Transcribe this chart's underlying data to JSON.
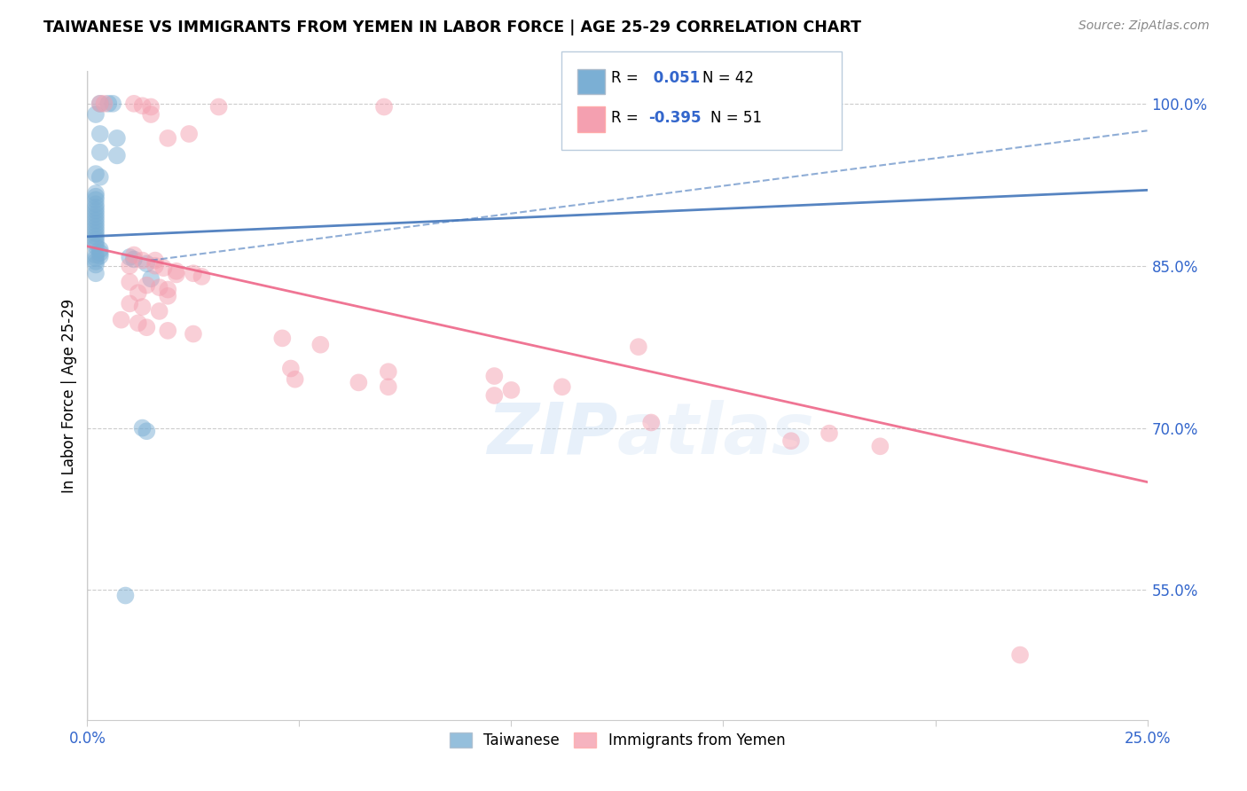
{
  "title": "TAIWANESE VS IMMIGRANTS FROM YEMEN IN LABOR FORCE | AGE 25-29 CORRELATION CHART",
  "source": "Source: ZipAtlas.com",
  "ylabel": "In Labor Force | Age 25-29",
  "xlim": [
    0.0,
    0.25
  ],
  "ylim": [
    0.43,
    1.03
  ],
  "x_ticks": [
    0.0,
    0.05,
    0.1,
    0.15,
    0.2,
    0.25
  ],
  "x_tick_labels": [
    "0.0%",
    "",
    "",
    "",
    "",
    "25.0%"
  ],
  "y_ticks_right": [
    0.55,
    0.7,
    0.85,
    1.0
  ],
  "y_tick_labels_right": [
    "55.0%",
    "70.0%",
    "85.0%",
    "100.0%"
  ],
  "taiwanese_R": 0.051,
  "taiwanese_N": 42,
  "yemeni_R": -0.395,
  "yemeni_N": 51,
  "blue_color": "#7BAFD4",
  "pink_color": "#F4A0B0",
  "blue_line_color": "#4477BB",
  "pink_line_color": "#EE6688",
  "watermark": "ZIPatlas",
  "blue_scatter": [
    [
      0.003,
      1.0
    ],
    [
      0.005,
      1.0
    ],
    [
      0.006,
      1.0
    ],
    [
      0.002,
      0.99
    ],
    [
      0.003,
      0.972
    ],
    [
      0.007,
      0.968
    ],
    [
      0.003,
      0.955
    ],
    [
      0.007,
      0.952
    ],
    [
      0.002,
      0.935
    ],
    [
      0.003,
      0.932
    ],
    [
      0.002,
      0.917
    ],
    [
      0.002,
      0.914
    ],
    [
      0.002,
      0.911
    ],
    [
      0.002,
      0.907
    ],
    [
      0.002,
      0.904
    ],
    [
      0.002,
      0.901
    ],
    [
      0.002,
      0.898
    ],
    [
      0.002,
      0.895
    ],
    [
      0.002,
      0.892
    ],
    [
      0.002,
      0.889
    ],
    [
      0.002,
      0.886
    ],
    [
      0.002,
      0.883
    ],
    [
      0.002,
      0.88
    ],
    [
      0.002,
      0.877
    ],
    [
      0.002,
      0.874
    ],
    [
      0.002,
      0.871
    ],
    [
      0.002,
      0.868
    ],
    [
      0.003,
      0.865
    ],
    [
      0.003,
      0.862
    ],
    [
      0.003,
      0.859
    ],
    [
      0.01,
      0.858
    ],
    [
      0.011,
      0.856
    ],
    [
      0.014,
      0.852
    ],
    [
      0.002,
      0.843
    ],
    [
      0.015,
      0.838
    ],
    [
      0.013,
      0.7
    ],
    [
      0.014,
      0.697
    ],
    [
      0.009,
      0.545
    ],
    [
      0.002,
      0.86
    ],
    [
      0.002,
      0.857
    ],
    [
      0.002,
      0.854
    ],
    [
      0.002,
      0.851
    ]
  ],
  "yemeni_scatter": [
    [
      0.003,
      1.0
    ],
    [
      0.004,
      1.0
    ],
    [
      0.011,
      1.0
    ],
    [
      0.013,
      0.998
    ],
    [
      0.015,
      0.997
    ],
    [
      0.031,
      0.997
    ],
    [
      0.07,
      0.997
    ],
    [
      0.13,
      0.997
    ],
    [
      0.015,
      0.99
    ],
    [
      0.024,
      0.972
    ],
    [
      0.019,
      0.968
    ],
    [
      0.011,
      0.86
    ],
    [
      0.013,
      0.855
    ],
    [
      0.016,
      0.855
    ],
    [
      0.01,
      0.85
    ],
    [
      0.016,
      0.85
    ],
    [
      0.018,
      0.848
    ],
    [
      0.021,
      0.845
    ],
    [
      0.021,
      0.842
    ],
    [
      0.025,
      0.843
    ],
    [
      0.027,
      0.84
    ],
    [
      0.01,
      0.835
    ],
    [
      0.014,
      0.832
    ],
    [
      0.017,
      0.83
    ],
    [
      0.019,
      0.828
    ],
    [
      0.012,
      0.825
    ],
    [
      0.019,
      0.822
    ],
    [
      0.01,
      0.815
    ],
    [
      0.013,
      0.812
    ],
    [
      0.017,
      0.808
    ],
    [
      0.008,
      0.8
    ],
    [
      0.012,
      0.797
    ],
    [
      0.014,
      0.793
    ],
    [
      0.019,
      0.79
    ],
    [
      0.025,
      0.787
    ],
    [
      0.046,
      0.783
    ],
    [
      0.055,
      0.777
    ],
    [
      0.13,
      0.775
    ],
    [
      0.048,
      0.755
    ],
    [
      0.071,
      0.752
    ],
    [
      0.096,
      0.748
    ],
    [
      0.049,
      0.745
    ],
    [
      0.064,
      0.742
    ],
    [
      0.071,
      0.738
    ],
    [
      0.112,
      0.738
    ],
    [
      0.1,
      0.735
    ],
    [
      0.096,
      0.73
    ],
    [
      0.133,
      0.705
    ],
    [
      0.175,
      0.695
    ],
    [
      0.166,
      0.688
    ],
    [
      0.187,
      0.683
    ],
    [
      0.22,
      0.49
    ]
  ],
  "blue_line": [
    [
      0.0,
      0.877
    ],
    [
      0.25,
      0.92
    ]
  ],
  "pink_line": [
    [
      0.0,
      0.868
    ],
    [
      0.25,
      0.65
    ]
  ],
  "blue_dash_line": [
    [
      0.015,
      0.855
    ],
    [
      0.25,
      0.975
    ]
  ]
}
